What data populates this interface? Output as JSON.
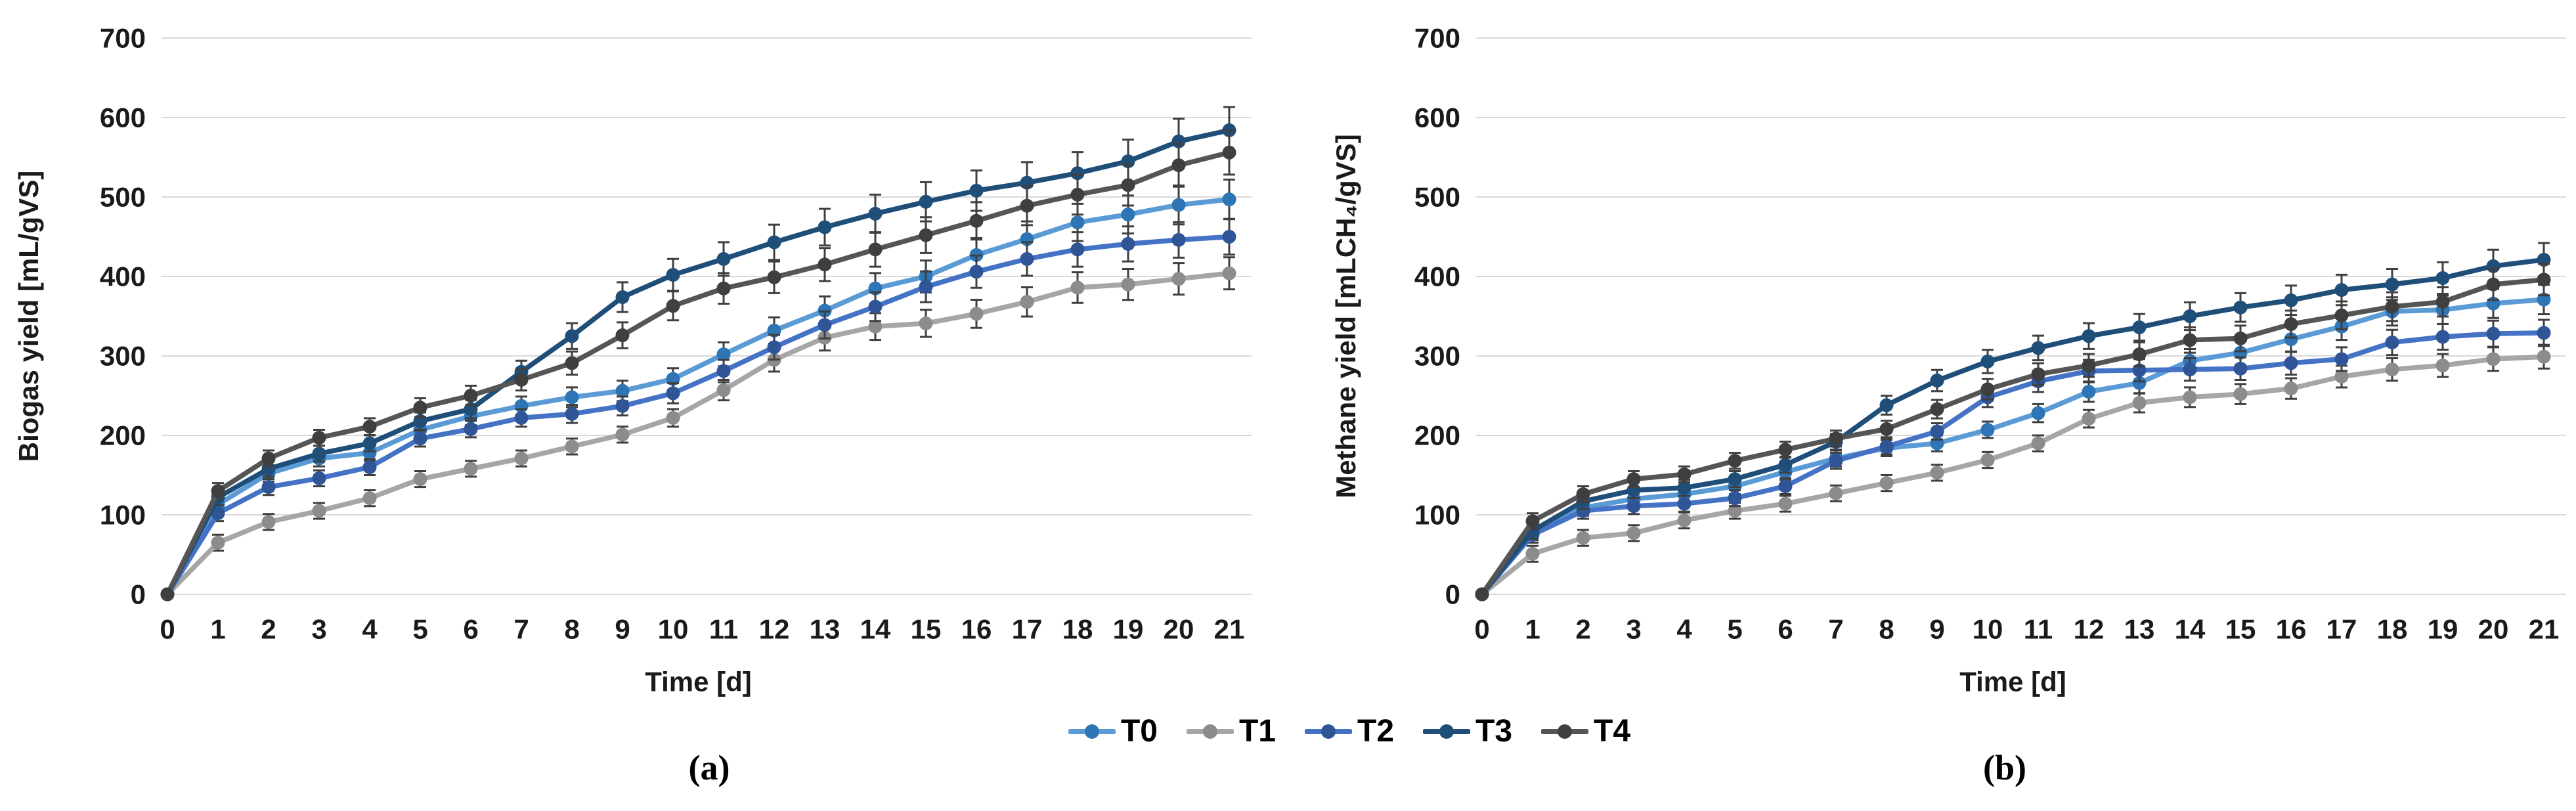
{
  "figure": {
    "panel_a_caption": "(a)",
    "panel_b_caption": "(b)",
    "gridline_color": "#D9D9D9",
    "error_bar_color": "#3F3F3F",
    "legend": {
      "position": "bottom-center",
      "items": [
        {
          "id": "T0",
          "label": "T0",
          "line_color": "#5B9BD5",
          "marker_color": "#2E75B6"
        },
        {
          "id": "T1",
          "label": "T1",
          "line_color": "#A6A6A6",
          "marker_color": "#8C8C8C"
        },
        {
          "id": "T2",
          "label": "T2",
          "line_color": "#4472C4",
          "marker_color": "#2F5597"
        },
        {
          "id": "T3",
          "label": "T3",
          "line_color": "#1F4E79",
          "marker_color": "#1F4E79"
        },
        {
          "id": "T4",
          "label": "T4",
          "line_color": "#555555",
          "marker_color": "#3F3F3F"
        }
      ]
    }
  },
  "chart_data": [
    {
      "id": "a",
      "type": "line",
      "title": "",
      "ylabel": "Biogas yield [mL/gVS]",
      "xlabel": "Time [d]",
      "ylim": [
        0,
        700
      ],
      "yticks": [
        0,
        100,
        200,
        300,
        400,
        500,
        600,
        700
      ],
      "grid": "horizontal",
      "error_bars": "visible on all points, approx ±5% (visual estimate)",
      "x": [
        0,
        1,
        2,
        3,
        4,
        5,
        6,
        7,
        8,
        9,
        10,
        11,
        12,
        13,
        14,
        15,
        16,
        17,
        18,
        19,
        20,
        21
      ],
      "series": [
        {
          "name": "T0",
          "values": [
            0,
            113,
            152,
            171,
            178,
            207,
            224,
            237,
            248,
            256,
            271,
            302,
            332,
            357,
            385,
            400,
            427,
            447,
            468,
            478,
            490,
            497
          ]
        },
        {
          "name": "T1",
          "values": [
            0,
            65,
            91,
            105,
            121,
            145,
            158,
            171,
            186,
            201,
            222,
            257,
            295,
            323,
            337,
            341,
            353,
            368,
            386,
            390,
            397,
            404
          ]
        },
        {
          "name": "T2",
          "values": [
            0,
            102,
            135,
            146,
            160,
            196,
            208,
            222,
            227,
            237,
            253,
            281,
            311,
            339,
            362,
            387,
            406,
            422,
            434,
            441,
            446,
            450
          ]
        },
        {
          "name": "T3",
          "values": [
            0,
            122,
            158,
            177,
            190,
            218,
            233,
            280,
            325,
            374,
            402,
            422,
            443,
            462,
            479,
            494,
            508,
            518,
            530,
            545,
            570,
            584
          ]
        },
        {
          "name": "T4",
          "values": [
            0,
            130,
            171,
            197,
            211,
            235,
            250,
            270,
            291,
            326,
            363,
            385,
            399,
            415,
            434,
            452,
            470,
            489,
            503,
            515,
            540,
            556
          ]
        }
      ]
    },
    {
      "id": "b",
      "type": "line",
      "title": "",
      "ylabel": "Methane yield [mLCH₄/gVS]",
      "xlabel": "Time [d]",
      "ylim": [
        0,
        700
      ],
      "yticks": [
        0,
        100,
        200,
        300,
        400,
        500,
        600,
        700
      ],
      "grid": "horizontal",
      "error_bars": "visible on all points, approx ±5% (visual estimate)",
      "x": [
        0,
        1,
        2,
        3,
        4,
        5,
        6,
        7,
        8,
        9,
        10,
        11,
        12,
        13,
        14,
        15,
        16,
        17,
        18,
        19,
        20,
        21
      ],
      "series": [
        {
          "name": "T0",
          "values": [
            0,
            78,
            109,
            120,
            126,
            136,
            154,
            171,
            184,
            190,
            207,
            228,
            255,
            266,
            294,
            304,
            321,
            337,
            356,
            358,
            366,
            371
          ]
        },
        {
          "name": "T1",
          "values": [
            0,
            51,
            71,
            77,
            93,
            105,
            114,
            127,
            140,
            153,
            169,
            190,
            221,
            241,
            248,
            252,
            259,
            274,
            283,
            288,
            296,
            299
          ]
        },
        {
          "name": "T2",
          "values": [
            0,
            75,
            105,
            111,
            114,
            121,
            136,
            168,
            186,
            205,
            248,
            268,
            281,
            282,
            283,
            284,
            291,
            296,
            317,
            324,
            328,
            329
          ]
        },
        {
          "name": "T3",
          "values": [
            0,
            80,
            117,
            131,
            134,
            145,
            163,
            192,
            238,
            269,
            293,
            310,
            325,
            336,
            350,
            361,
            370,
            383,
            390,
            398,
            413,
            421
          ]
        },
        {
          "name": "T4",
          "values": [
            0,
            92,
            126,
            145,
            151,
            168,
            182,
            196,
            208,
            233,
            258,
            277,
            288,
            302,
            320,
            322,
            340,
            351,
            362,
            368,
            390,
            396
          ]
        }
      ]
    }
  ]
}
